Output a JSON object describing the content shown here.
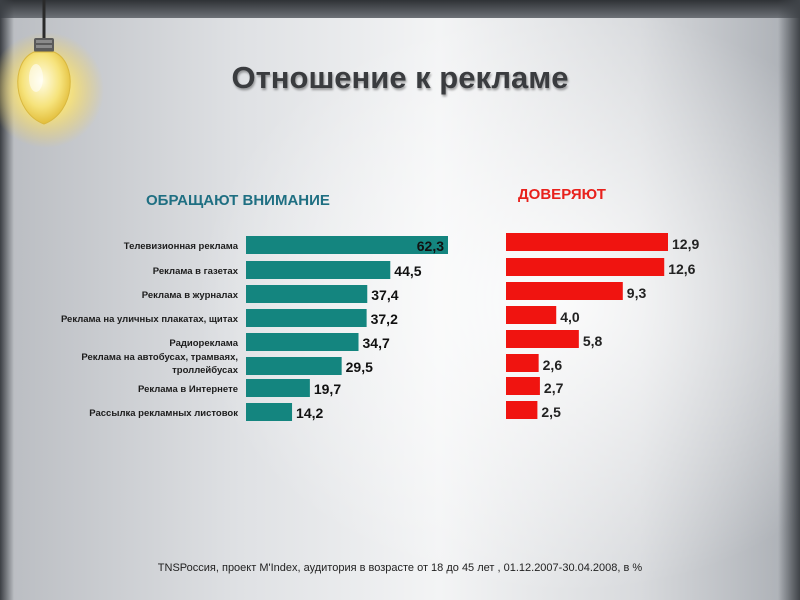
{
  "title": "Отношение к рекламе",
  "footnote": "TNSРоссия, проект M'Index, аудитория в возрасте от 18 до 45 лет , 01.12.2007-30.04.2008, в %",
  "colors": {
    "attention": "#14857f",
    "trust": "#f01410",
    "title": "#3a3c3f"
  },
  "decoration": {
    "icon": "light-bulb-icon"
  },
  "chart_data": [
    {
      "type": "bar",
      "orientation": "horizontal",
      "title": "ОБРАЩАЮТ ВНИМАНИЕ",
      "categories": [
        "Телевизионная реклама",
        "Реклама в газетах",
        "Реклама в журналах",
        "Реклама на уличных плакатах, щитах",
        "Радиореклама",
        "Реклама на автобусах, трамваях, троллейбусах",
        "Реклама в Интернете",
        "Рассылка рекламных листовок"
      ],
      "values": [
        62.3,
        44.5,
        37.4,
        37.2,
        34.7,
        29.5,
        19.7,
        14.2
      ],
      "value_labels": [
        "62,3",
        "44,5",
        "37,4",
        "37,2",
        "34,7",
        "29,5",
        "19,7",
        "14,2"
      ],
      "xlim": [
        0,
        62.3
      ],
      "grid": false
    },
    {
      "type": "bar",
      "orientation": "horizontal",
      "title": "ДОВЕРЯЮТ",
      "categories": [
        "Телевизионная реклама",
        "Реклама в газетах",
        "Реклама в журналах",
        "Реклама на уличных плакатах, щитах",
        "Радиореклама",
        "Реклама на автобусах, трамваях, троллейбусах",
        "Реклама в Интернете",
        "Рассылка рекламных листовок"
      ],
      "values": [
        12.9,
        12.6,
        9.3,
        4.0,
        5.8,
        2.6,
        2.7,
        2.5
      ],
      "value_labels": [
        "12,9",
        "12,6",
        "9,3",
        "4,0",
        "5,8",
        "2,6",
        "2,7",
        "2,5"
      ],
      "xlim": [
        0,
        12.9
      ],
      "grid": false
    }
  ]
}
